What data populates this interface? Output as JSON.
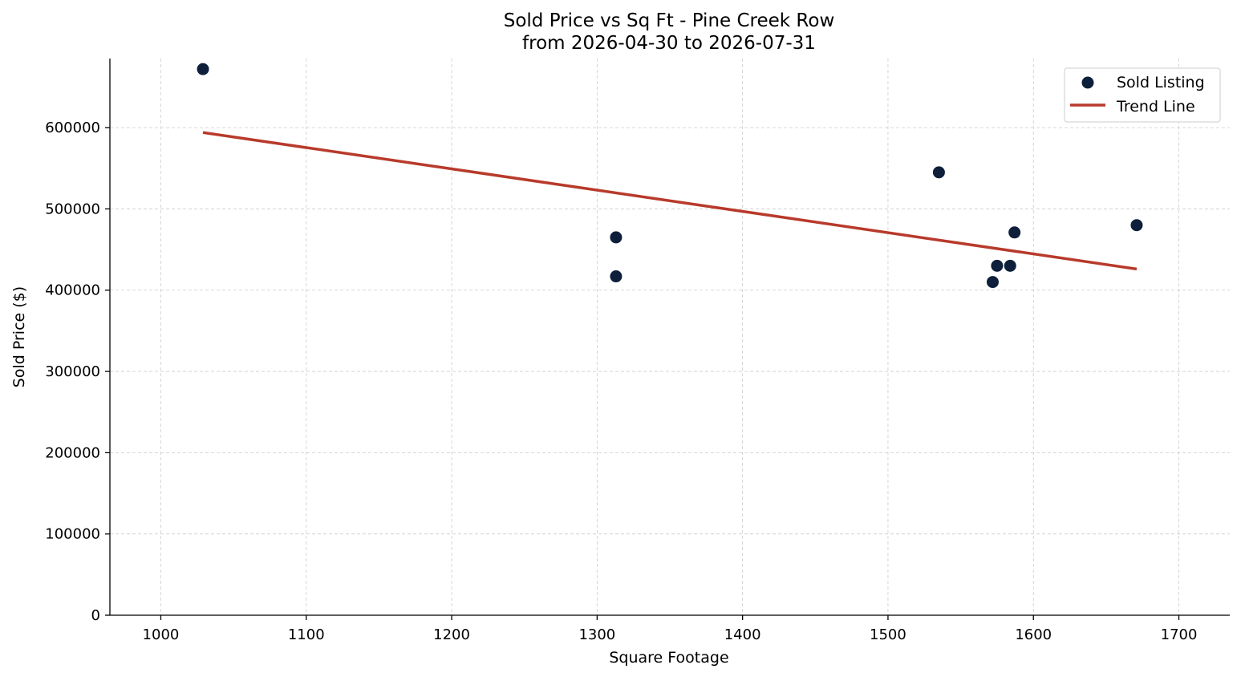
{
  "chart_data": {
    "type": "scatter",
    "title": "Sold Price vs Sq Ft - Pine Creek Row",
    "subtitle": "from 2026-04-30 to 2026-07-31",
    "xlabel": "Square Footage",
    "ylabel": "Sold Price ($)",
    "xlim": [
      965,
      1735
    ],
    "ylim": [
      0,
      685000
    ],
    "x_ticks": [
      1000,
      1100,
      1200,
      1300,
      1400,
      1500,
      1600,
      1700
    ],
    "y_ticks": [
      0,
      100000,
      200000,
      300000,
      400000,
      500000,
      600000
    ],
    "grid": true,
    "legend_position": "top-right",
    "series": [
      {
        "name": "Sold Listing",
        "type": "scatter",
        "color": "#0d1f3a",
        "points": [
          {
            "x": 1029,
            "y": 672000
          },
          {
            "x": 1313,
            "y": 465000
          },
          {
            "x": 1313,
            "y": 417000
          },
          {
            "x": 1535,
            "y": 545000
          },
          {
            "x": 1572,
            "y": 410000
          },
          {
            "x": 1575,
            "y": 430000
          },
          {
            "x": 1584,
            "y": 430000
          },
          {
            "x": 1587,
            "y": 471000
          },
          {
            "x": 1671,
            "y": 480000
          }
        ]
      },
      {
        "name": "Trend Line",
        "type": "line",
        "color": "#b83a2b",
        "points": [
          {
            "x": 1029,
            "y": 594000
          },
          {
            "x": 1671,
            "y": 426000
          }
        ]
      }
    ]
  }
}
